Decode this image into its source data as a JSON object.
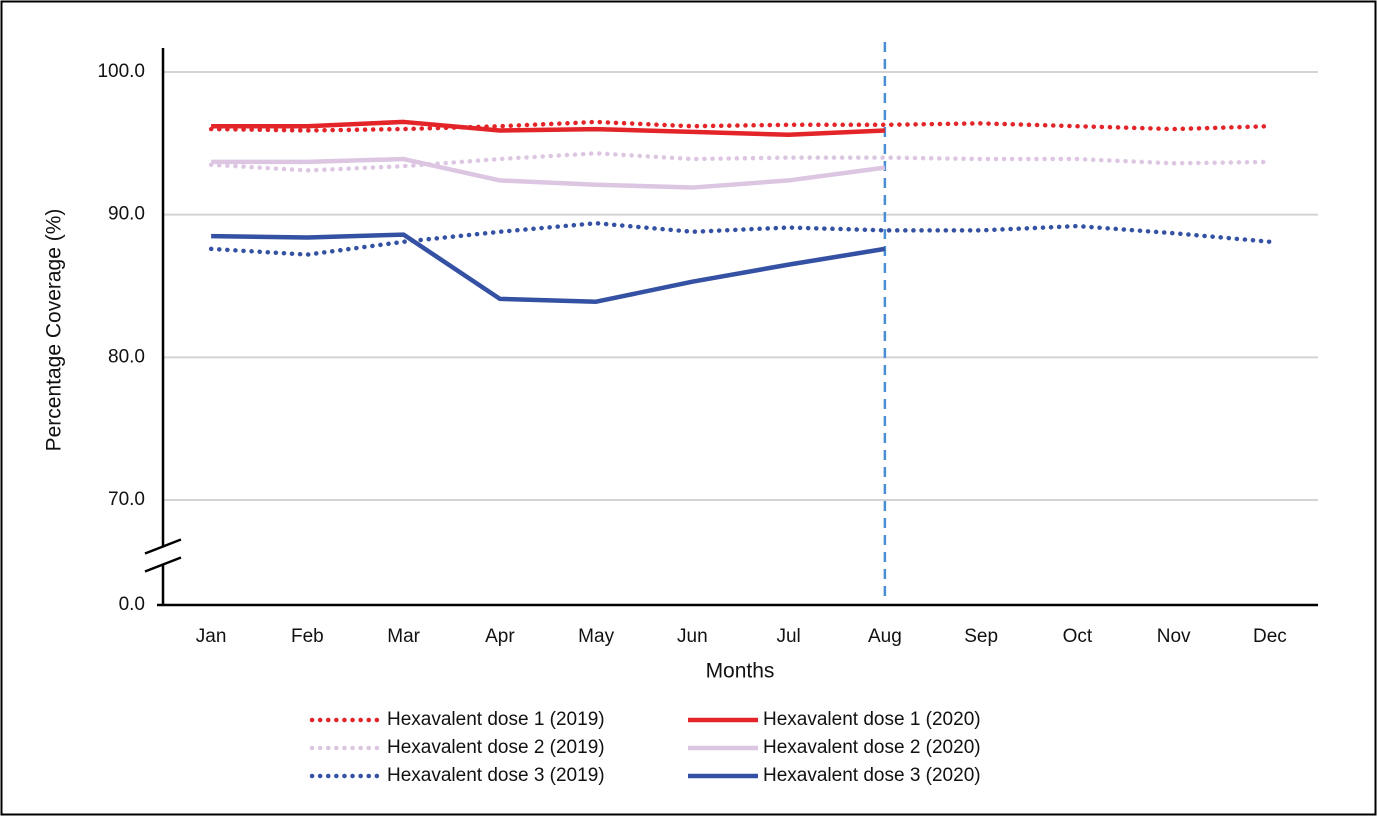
{
  "chart_data": {
    "type": "line",
    "y_label": "Percentage Coverage (%)",
    "x_label": "Months",
    "categories": [
      "Jan",
      "Feb",
      "Mar",
      "Apr",
      "May",
      "Jun",
      "Jul",
      "Aug",
      "Sep",
      "Oct",
      "Nov",
      "Dec"
    ],
    "ylim": [
      0,
      100
    ],
    "yticks": [
      {
        "value": 0,
        "label": "0.0"
      },
      {
        "value": 70,
        "label": "70.0"
      },
      {
        "value": 80,
        "label": "80.0"
      },
      {
        "value": 90,
        "label": "90.0"
      },
      {
        "value": 100,
        "label": "100.0"
      }
    ],
    "axis_break": true,
    "grid": true,
    "legend": "bottom",
    "vline": "Aug",
    "series": [
      {
        "name": "Hexavalent dose 1 (2019)",
        "color": "#e32428",
        "style": "dotted",
        "values": [
          96.0,
          95.9,
          96.0,
          96.2,
          96.5,
          96.2,
          96.3,
          96.3,
          96.4,
          96.2,
          96.0,
          96.2
        ]
      },
      {
        "name": "Hexavalent dose 1 (2020)",
        "color": "#e32428",
        "style": "solid",
        "values": [
          96.2,
          96.2,
          96.5,
          95.9,
          96.0,
          95.8,
          95.6,
          95.9,
          null,
          null,
          null,
          null
        ]
      },
      {
        "name": "Hexavalent dose 2 (2019)",
        "color": "#dcc6e2",
        "style": "dotted",
        "values": [
          93.5,
          93.1,
          93.4,
          93.9,
          94.3,
          93.9,
          94.0,
          94.0,
          93.9,
          93.9,
          93.6,
          93.7
        ]
      },
      {
        "name": "Hexavalent dose 2 (2020)",
        "color": "#dcc6e2",
        "style": "solid",
        "values": [
          93.7,
          93.7,
          93.9,
          92.4,
          92.1,
          91.9,
          92.4,
          93.3,
          null,
          null,
          null,
          null
        ]
      },
      {
        "name": "Hexavalent dose 3 (2019)",
        "color": "#3451a3",
        "style": "dotted",
        "values": [
          87.6,
          87.2,
          88.1,
          88.8,
          89.4,
          88.8,
          89.1,
          88.9,
          88.9,
          89.2,
          88.7,
          88.1
        ]
      },
      {
        "name": "Hexavalent dose 3 (2020)",
        "color": "#3451a3",
        "style": "solid",
        "values": [
          88.5,
          88.4,
          88.6,
          84.1,
          83.9,
          85.3,
          86.5,
          87.6,
          null,
          null,
          null,
          null
        ]
      }
    ]
  }
}
